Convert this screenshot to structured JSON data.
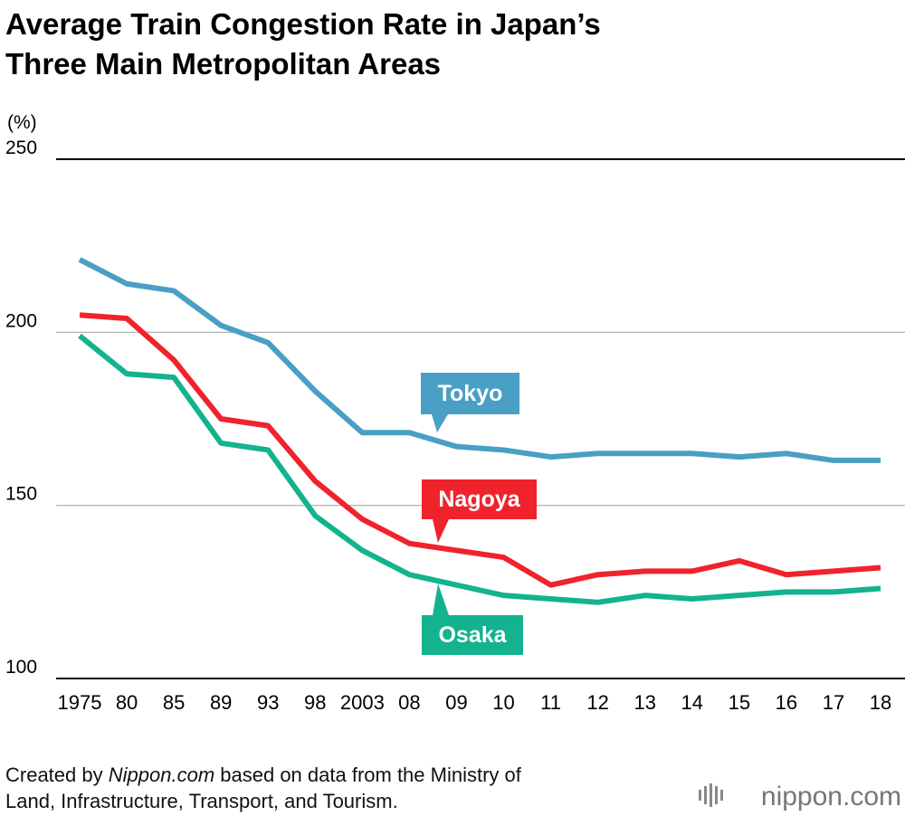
{
  "chart_data": {
    "type": "line",
    "title_lines": [
      "Average Train Congestion Rate in Japan’s",
      "Three Main Metropolitan Areas"
    ],
    "y_unit": "(%)",
    "categories": [
      "1975",
      "80",
      "85",
      "89",
      "93",
      "98",
      "2003",
      "08",
      "09",
      "10",
      "11",
      "12",
      "13",
      "14",
      "15",
      "16",
      "17",
      "18"
    ],
    "series": [
      {
        "name": "Tokyo",
        "color": "#4a9fc4",
        "values": [
          221,
          214,
          212,
          202,
          197,
          183,
          171,
          171,
          167,
          166,
          164,
          165,
          165,
          165,
          164,
          165,
          163,
          163
        ]
      },
      {
        "name": "Nagoya",
        "color": "#f0232d",
        "values": [
          205,
          204,
          192,
          175,
          173,
          157,
          146,
          139,
          137,
          135,
          127,
          130,
          131,
          131,
          134,
          130,
          131,
          132
        ]
      },
      {
        "name": "Osaka",
        "color": "#13b38f",
        "values": [
          199,
          188,
          187,
          168,
          166,
          147,
          137,
          130,
          127,
          124,
          123,
          122,
          124,
          123,
          124,
          125,
          125,
          126
        ]
      }
    ],
    "ylim": [
      100,
      250
    ],
    "yticks": [
      100,
      150,
      200,
      250
    ],
    "grid": true,
    "source": {
      "prefix": "Created by",
      "site": "Nippon.com",
      "rest": "based on data from the Ministry of",
      "line2": "Land, Infrastructure, Transport, and Tourism."
    },
    "logo": "nippon.com"
  }
}
